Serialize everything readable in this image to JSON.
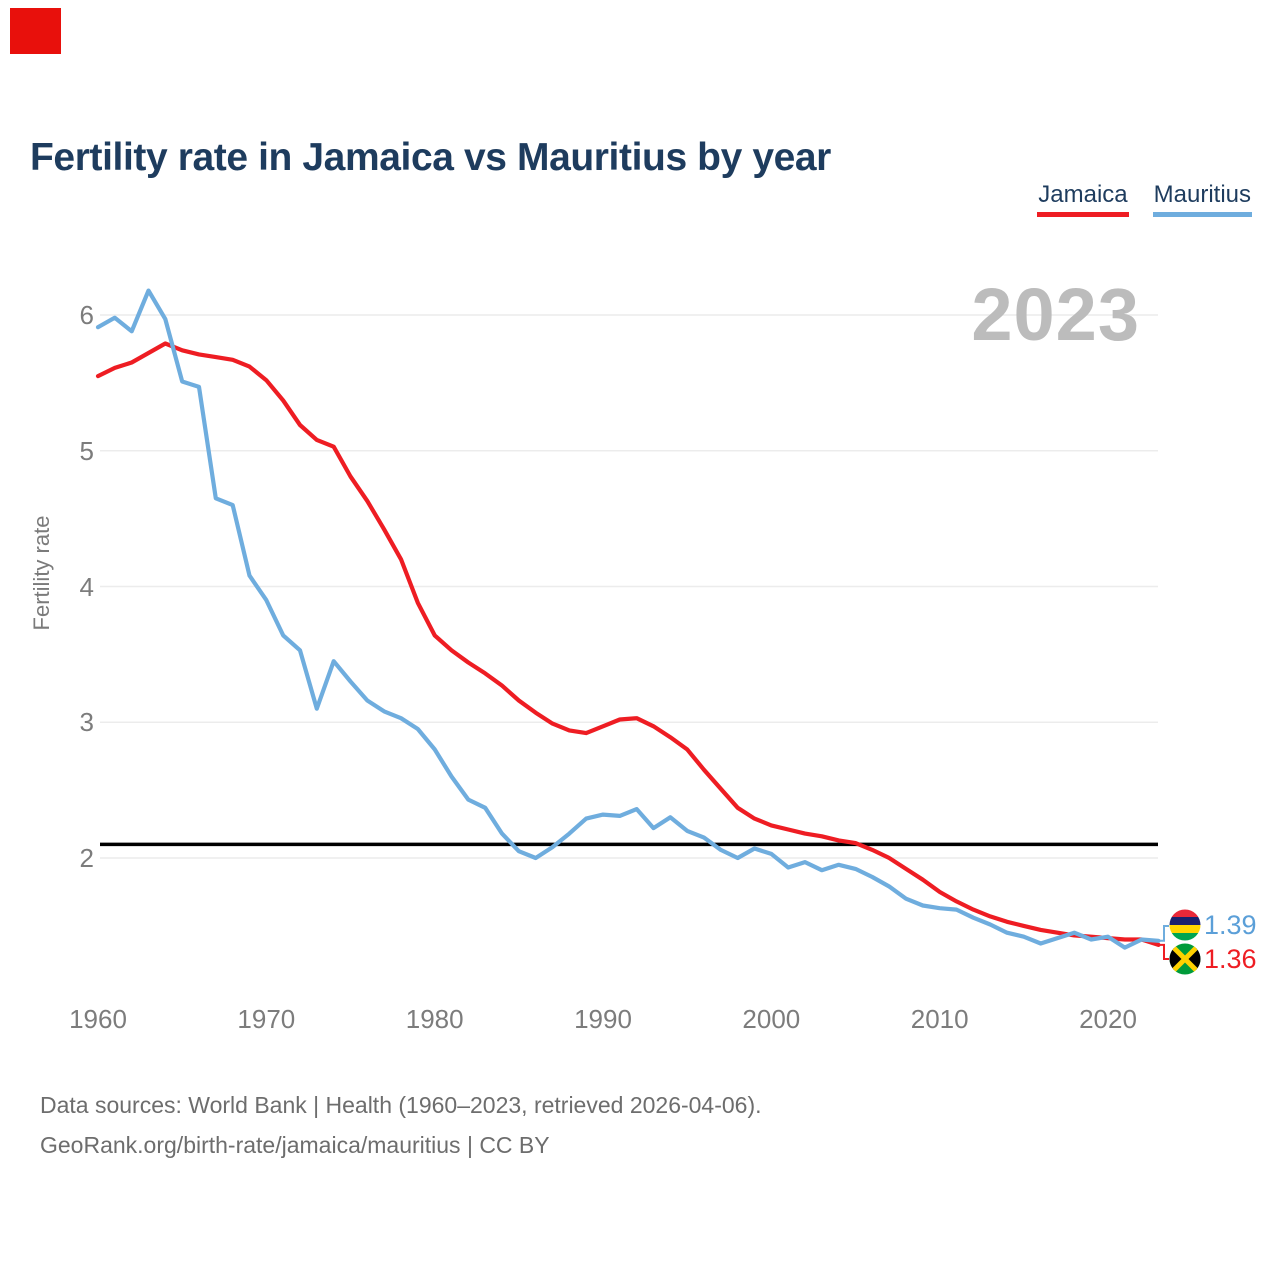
{
  "page": {
    "title": "Fertility rate in Jamaica vs Mauritius by year",
    "watermark_year": "2023",
    "footer_line1": "Data sources: World Bank | Health (1960–2023, retrieved 2026-04-06).",
    "footer_line2": "GeoRank.org/birth-rate/jamaica/mauritius | CC BY"
  },
  "legend": [
    {
      "label": "Jamaica",
      "color": "#ee1d23"
    },
    {
      "label": "Mauritius",
      "color": "#6fadde"
    }
  ],
  "chart_data": {
    "type": "line",
    "title": "Fertility rate in Jamaica vs Mauritius by year",
    "xlabel": "",
    "ylabel": "Fertility rate",
    "grid": "horizontal",
    "legend_position": "top-right",
    "xlim": [
      1960,
      2023
    ],
    "ylim": [
      1.1,
      6.4
    ],
    "x_ticks": [
      1960,
      1970,
      1980,
      1990,
      2000,
      2010,
      2020
    ],
    "y_ticks": [
      2,
      3,
      4,
      5,
      6
    ],
    "reference_line": {
      "value": 2.1,
      "color": "#000000"
    },
    "years": [
      1960,
      1961,
      1962,
      1963,
      1964,
      1965,
      1966,
      1967,
      1968,
      1969,
      1970,
      1971,
      1972,
      1973,
      1974,
      1975,
      1976,
      1977,
      1978,
      1979,
      1980,
      1981,
      1982,
      1983,
      1984,
      1985,
      1986,
      1987,
      1988,
      1989,
      1990,
      1991,
      1992,
      1993,
      1994,
      1995,
      1996,
      1997,
      1998,
      1999,
      2000,
      2001,
      2002,
      2003,
      2004,
      2005,
      2006,
      2007,
      2008,
      2009,
      2010,
      2011,
      2012,
      2013,
      2014,
      2015,
      2016,
      2017,
      2018,
      2019,
      2020,
      2021,
      2022,
      2023
    ],
    "series": [
      {
        "name": "Jamaica",
        "color": "#ee1d23",
        "end_label": "1.36",
        "values": [
          5.55,
          5.61,
          5.65,
          5.72,
          5.79,
          5.74,
          5.71,
          5.69,
          5.67,
          5.62,
          5.52,
          5.37,
          5.19,
          5.08,
          5.03,
          4.81,
          4.63,
          4.42,
          4.2,
          3.88,
          3.64,
          3.53,
          3.44,
          3.36,
          3.27,
          3.16,
          3.07,
          2.99,
          2.94,
          2.92,
          2.97,
          3.02,
          3.03,
          2.97,
          2.89,
          2.8,
          2.65,
          2.51,
          2.37,
          2.29,
          2.24,
          2.21,
          2.18,
          2.16,
          2.13,
          2.11,
          2.06,
          2.0,
          1.92,
          1.84,
          1.75,
          1.68,
          1.62,
          1.57,
          1.53,
          1.5,
          1.47,
          1.45,
          1.43,
          1.42,
          1.41,
          1.4,
          1.4,
          1.36
        ]
      },
      {
        "name": "Mauritius",
        "color": "#6fadde",
        "end_label": "1.39",
        "values": [
          5.91,
          5.98,
          5.88,
          6.18,
          5.97,
          5.51,
          5.47,
          4.65,
          4.6,
          4.08,
          3.9,
          3.64,
          3.53,
          3.1,
          3.45,
          3.3,
          3.16,
          3.08,
          3.03,
          2.95,
          2.8,
          2.6,
          2.43,
          2.37,
          2.18,
          2.05,
          2.0,
          2.08,
          2.18,
          2.29,
          2.32,
          2.31,
          2.36,
          2.22,
          2.3,
          2.2,
          2.15,
          2.06,
          2.0,
          2.07,
          2.03,
          1.93,
          1.97,
          1.91,
          1.95,
          1.92,
          1.86,
          1.79,
          1.7,
          1.65,
          1.63,
          1.62,
          1.56,
          1.51,
          1.45,
          1.42,
          1.37,
          1.41,
          1.45,
          1.4,
          1.42,
          1.34,
          1.4,
          1.39
        ]
      }
    ]
  }
}
